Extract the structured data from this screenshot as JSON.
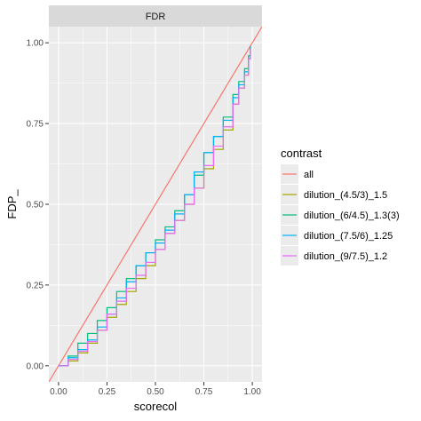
{
  "chart_data": {
    "type": "line",
    "facet_title": "FDR",
    "xlabel": "scorecol",
    "ylabel": "FDP_",
    "xlim": [
      -0.05,
      1.05
    ],
    "ylim": [
      -0.05,
      1.05
    ],
    "x_ticks": [
      0.0,
      0.25,
      0.5,
      0.75,
      1.0
    ],
    "x_tick_labels": [
      "0.00",
      "0.25",
      "0.50",
      "0.75",
      "1.00"
    ],
    "y_ticks": [
      0.0,
      0.25,
      0.5,
      0.75,
      1.0
    ],
    "y_tick_labels": [
      "0.00",
      "0.25",
      "0.50",
      "0.75",
      "1.00"
    ],
    "grid": true,
    "legend": {
      "title": "contrast",
      "placement": "right"
    },
    "series": [
      {
        "name": "all",
        "color": "#F8766D",
        "style": "abline",
        "x": [
          -0.05,
          1.05
        ],
        "y": [
          -0.05,
          1.05
        ]
      },
      {
        "name": "dilution_(4.5/3)_1.5",
        "color": "#A3A500",
        "x": [
          0.0,
          0.05,
          0.1,
          0.15,
          0.2,
          0.25,
          0.3,
          0.35,
          0.4,
          0.45,
          0.5,
          0.55,
          0.6,
          0.65,
          0.7,
          0.75,
          0.8,
          0.85,
          0.9,
          0.93,
          0.96,
          0.98,
          0.99
        ],
        "y": [
          0.0,
          0.015,
          0.04,
          0.07,
          0.11,
          0.15,
          0.19,
          0.23,
          0.27,
          0.31,
          0.36,
          0.41,
          0.45,
          0.5,
          0.55,
          0.61,
          0.67,
          0.73,
          0.81,
          0.86,
          0.9,
          0.95,
          0.98
        ]
      },
      {
        "name": "dilution_(6/4.5)_1.3(3)",
        "color": "#00BF7D",
        "x": [
          0.0,
          0.05,
          0.1,
          0.15,
          0.2,
          0.25,
          0.3,
          0.35,
          0.4,
          0.45,
          0.5,
          0.55,
          0.6,
          0.65,
          0.7,
          0.75,
          0.8,
          0.85,
          0.9,
          0.93,
          0.96,
          0.98,
          0.99
        ],
        "y": [
          0.0,
          0.03,
          0.07,
          0.1,
          0.14,
          0.18,
          0.23,
          0.27,
          0.31,
          0.35,
          0.39,
          0.43,
          0.48,
          0.53,
          0.59,
          0.66,
          0.71,
          0.77,
          0.84,
          0.88,
          0.92,
          0.96,
          0.99
        ]
      },
      {
        "name": "dilution_(7.5/6)_1.25",
        "color": "#00B0F6",
        "x": [
          0.0,
          0.05,
          0.1,
          0.15,
          0.2,
          0.25,
          0.3,
          0.35,
          0.4,
          0.45,
          0.5,
          0.55,
          0.6,
          0.65,
          0.7,
          0.75,
          0.8,
          0.85,
          0.9,
          0.93,
          0.96,
          0.98,
          0.99
        ],
        "y": [
          0.0,
          0.025,
          0.05,
          0.08,
          0.12,
          0.16,
          0.21,
          0.26,
          0.31,
          0.35,
          0.38,
          0.42,
          0.47,
          0.53,
          0.6,
          0.66,
          0.71,
          0.76,
          0.83,
          0.87,
          0.91,
          0.95,
          0.99
        ]
      },
      {
        "name": "dilution_(9/7.5)_1.2",
        "color": "#E76BF3",
        "x": [
          0.0,
          0.05,
          0.1,
          0.15,
          0.2,
          0.25,
          0.3,
          0.35,
          0.4,
          0.45,
          0.5,
          0.55,
          0.6,
          0.65,
          0.7,
          0.75,
          0.8,
          0.85,
          0.9,
          0.93,
          0.96,
          0.98,
          0.99
        ],
        "y": [
          0.0,
          0.02,
          0.045,
          0.075,
          0.11,
          0.16,
          0.2,
          0.24,
          0.28,
          0.32,
          0.36,
          0.41,
          0.45,
          0.5,
          0.55,
          0.62,
          0.68,
          0.74,
          0.81,
          0.86,
          0.9,
          0.95,
          0.98
        ]
      }
    ]
  }
}
